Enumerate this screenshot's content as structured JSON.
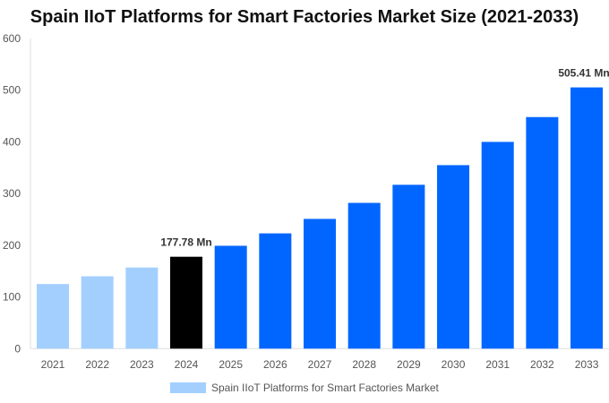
{
  "chart_data": {
    "type": "bar",
    "title": "Spain IIoT Platforms for Smart Factories Market Size (2021-2033)",
    "categories": [
      "2021",
      "2022",
      "2023",
      "2024",
      "2025",
      "2026",
      "2027",
      "2028",
      "2029",
      "2030",
      "2031",
      "2032",
      "2033"
    ],
    "series": [
      {
        "name": "Spain IIoT Platforms for Smart Factories Market",
        "values": [
          125,
          140,
          157,
          177.78,
          199,
          223,
          251,
          282,
          317,
          355,
          400,
          448,
          505.41
        ]
      }
    ],
    "data_labels": {
      "3": "177.78 Mn",
      "12": "505.41 Mn"
    },
    "bar_colors": {
      "historical": "#a3cfff",
      "base_year": "#000000",
      "forecast": "#0066ff"
    },
    "ylim": [
      0,
      600
    ],
    "yticks": [
      0,
      100,
      200,
      300,
      400,
      500,
      600
    ],
    "xlabel": "",
    "ylabel": "",
    "grid": false,
    "legend": "bottom"
  }
}
